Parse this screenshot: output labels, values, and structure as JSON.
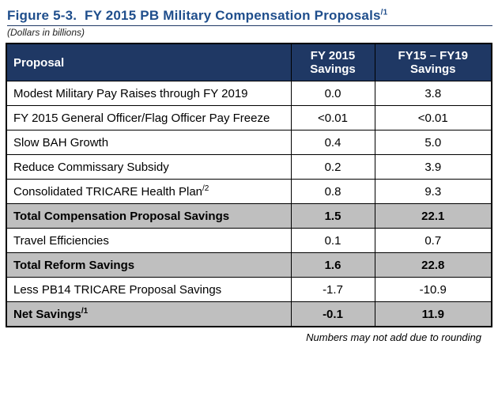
{
  "figure": {
    "title": "Figure 5-3.  FY 2015 PB Military Compensation Proposals",
    "title_sup": "/1",
    "subtitle": "(Dollars in billions)",
    "footnote": "Numbers may not add due to rounding"
  },
  "colors": {
    "header_bg": "#1F3864",
    "header_text": "#FFFFFF",
    "total_row_bg": "#BFBFBF",
    "title_text": "#1F4E8C",
    "border": "#000000"
  },
  "table": {
    "headers": {
      "proposal": "Proposal",
      "fy2015": "FY 2015 Savings",
      "fy15_fy19": "FY15 – FY19 Savings"
    },
    "rows": [
      {
        "proposal": "Modest Military Pay Raises through FY 2019",
        "sup": "",
        "fy2015": "0.0",
        "fy15_fy19": "3.8"
      },
      {
        "proposal": "FY 2015 General Officer/Flag Officer Pay Freeze",
        "sup": "",
        "fy2015": "<0.01",
        "fy15_fy19": "<0.01"
      },
      {
        "proposal": "Slow BAH Growth",
        "sup": "",
        "fy2015": "0.4",
        "fy15_fy19": "5.0"
      },
      {
        "proposal": "Reduce Commissary Subsidy",
        "sup": "",
        "fy2015": "0.2",
        "fy15_fy19": "3.9"
      },
      {
        "proposal": "Consolidated TRICARE Health Plan",
        "sup": "/2",
        "fy2015": "0.8",
        "fy15_fy19": "9.3"
      },
      {
        "proposal": "Total Compensation Proposal Savings",
        "sup": "",
        "fy2015": "1.5",
        "fy15_fy19": "22.1",
        "emphasis": true
      },
      {
        "proposal": "Travel Efficiencies",
        "sup": "",
        "fy2015": "0.1",
        "fy15_fy19": "0.7"
      },
      {
        "proposal": "Total Reform Savings",
        "sup": "",
        "fy2015": "1.6",
        "fy15_fy19": "22.8",
        "emphasis": true
      },
      {
        "proposal": "Less PB14 TRICARE Proposal Savings",
        "sup": "",
        "fy2015": "-1.7",
        "fy15_fy19": "-10.9"
      },
      {
        "proposal": "Net Savings",
        "sup": "/1",
        "fy2015": "-0.1",
        "fy15_fy19": "11.9",
        "emphasis": true
      }
    ]
  }
}
